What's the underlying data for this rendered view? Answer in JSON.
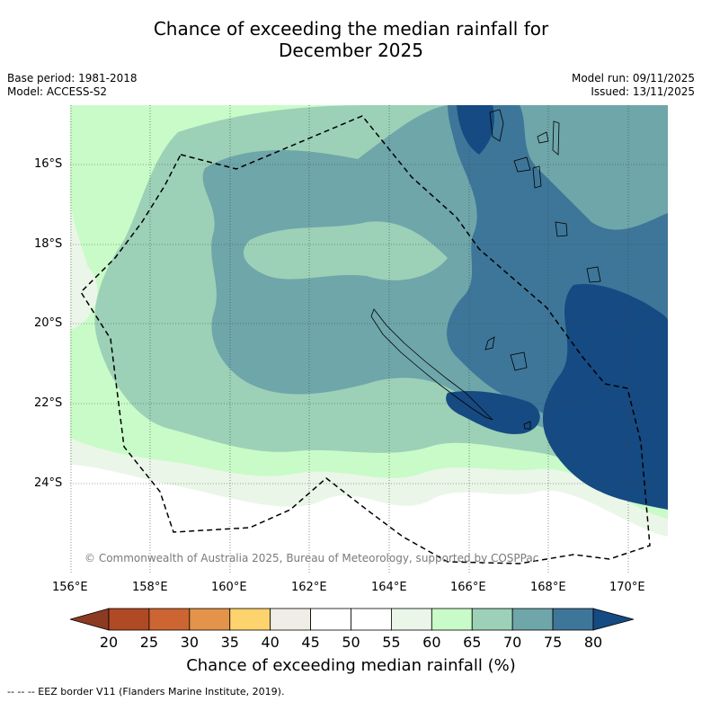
{
  "title": {
    "line1": "Chance of exceeding the median rainfall for",
    "line2": "December 2025"
  },
  "meta_left": {
    "base_period": "Base period: 1981-2018",
    "model": "Model: ACCESS-S2"
  },
  "meta_right": {
    "model_run": "Model run: 09/11/2025",
    "issued": "Issued: 13/11/2025"
  },
  "map": {
    "copyright": "© Commonwealth of Australia 2025, Bureau of Meteorology, supported by COSPPac",
    "lat_labels": [
      "16°S",
      "18°S",
      "20°S",
      "22°S",
      "24°S"
    ],
    "lon_labels": [
      "156°E",
      "158°E",
      "160°E",
      "162°E",
      "164°E",
      "166°E",
      "168°E",
      "170°E"
    ]
  },
  "colorbar": {
    "ticks": [
      "20",
      "25",
      "30",
      "35",
      "40",
      "45",
      "50",
      "55",
      "60",
      "65",
      "70",
      "75",
      "80"
    ],
    "title": "Chance of exceeding median rainfall (%)",
    "bins": [
      {
        "range": "<20",
        "color": "#8c3a22"
      },
      {
        "range": "20-25",
        "color": "#b04a25"
      },
      {
        "range": "25-30",
        "color": "#cd6532"
      },
      {
        "range": "30-35",
        "color": "#e3944a"
      },
      {
        "range": "35-40",
        "color": "#fdd36e"
      },
      {
        "range": "40-45",
        "color": "#f0ece6"
      },
      {
        "range": "45-50",
        "color": "#ffffff"
      },
      {
        "range": "50-55",
        "color": "#ffffff"
      },
      {
        "range": "55-60",
        "color": "#eaf6e8"
      },
      {
        "range": "60-65",
        "color": "#c9fbc8"
      },
      {
        "range": "65-70",
        "color": "#9cd1b7"
      },
      {
        "range": "70-75",
        "color": "#6ea6aa"
      },
      {
        "range": "75-80",
        "color": "#3e7699"
      },
      {
        "range": ">80",
        "color": "#164a82"
      }
    ]
  },
  "footer": "--  --  -- EEZ border V11 (Flanders Marine Institute, 2019)."
}
